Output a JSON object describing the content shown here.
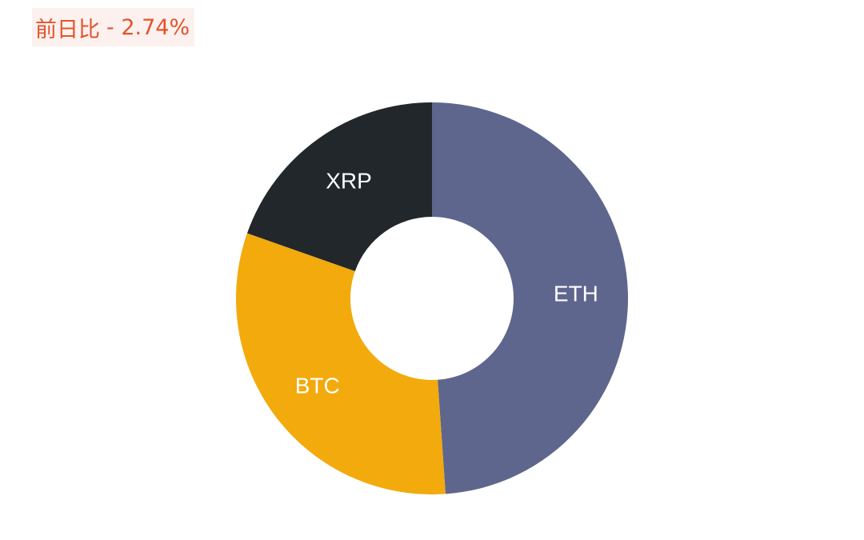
{
  "header": {
    "change_label": "前日比",
    "change_value": "- 2.74%",
    "change_color": "#e4532d"
  },
  "chart_data": {
    "type": "pie",
    "donut": true,
    "slices": [
      {
        "label": "ETH",
        "value": 48.9,
        "color": "#5f668d"
      },
      {
        "label": "BTC",
        "value": 31.5,
        "color": "#f2aa0d"
      },
      {
        "label": "XRP",
        "value": 19.6,
        "color": "#22272b"
      }
    ],
    "start_angle": "12 o'clock",
    "direction": "clockwise",
    "legend": "none"
  }
}
